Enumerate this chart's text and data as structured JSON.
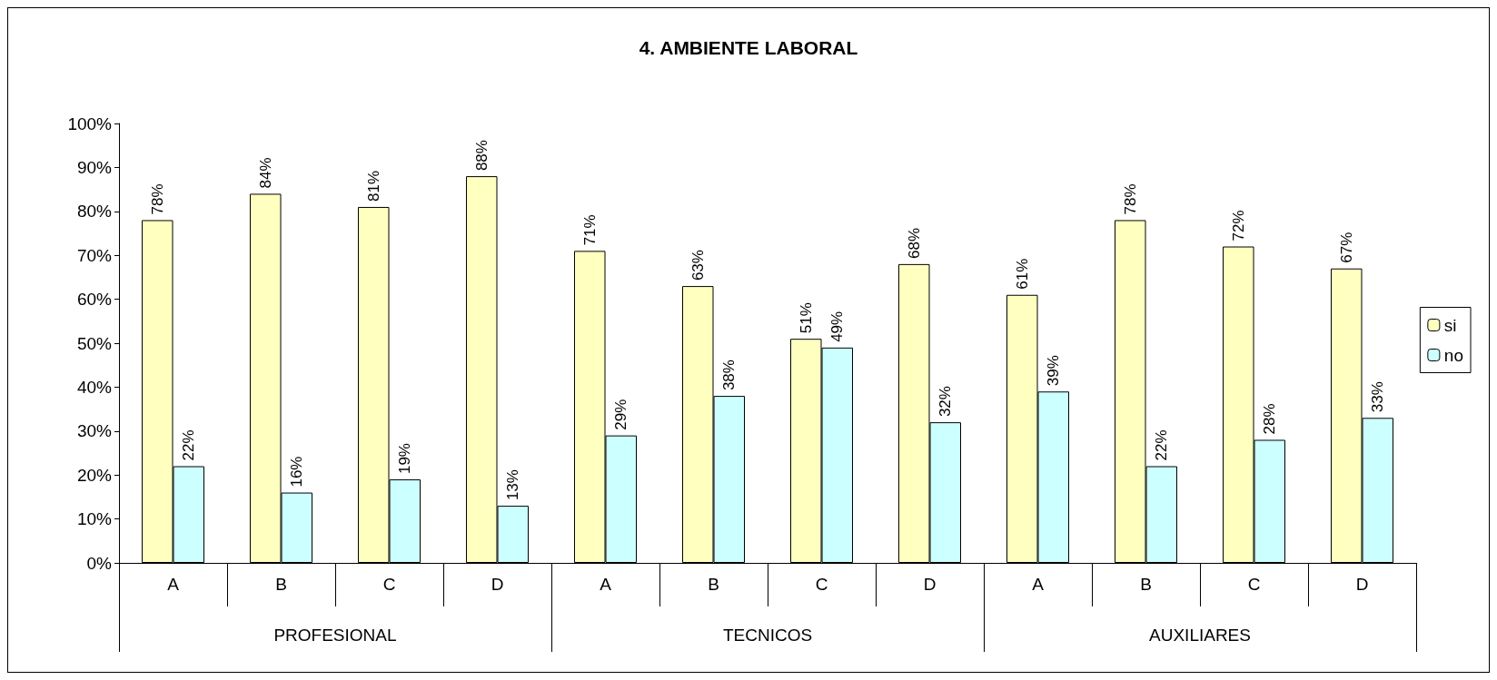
{
  "chart_data": {
    "type": "bar",
    "title": "4. AMBIENTE LABORAL",
    "categories": [
      "A",
      "B",
      "C",
      "D",
      "A",
      "B",
      "C",
      "D",
      "A",
      "B",
      "C",
      "D"
    ],
    "annotations": [
      "PROFESIONAL",
      "TECNICOS",
      "AUXILIARES"
    ],
    "series": [
      {
        "name": "si",
        "color": "#ffffc0",
        "values": [
          78,
          84,
          81,
          88,
          71,
          63,
          51,
          68,
          61,
          78,
          72,
          67
        ],
        "value_labels": [
          "78%",
          "84%",
          "81%",
          "88%",
          "71%",
          "63%",
          "51%",
          "68%",
          "61%",
          "78%",
          "72%",
          "67%"
        ]
      },
      {
        "name": "no",
        "color": "#ccffff",
        "values": [
          22,
          16,
          19,
          13,
          29,
          38,
          49,
          32,
          39,
          22,
          28,
          33
        ],
        "value_labels": [
          "22%",
          "16%",
          "19%",
          "13%",
          "29%",
          "38%",
          "49%",
          "32%",
          "39%",
          "22%",
          "28%",
          "33%"
        ]
      }
    ],
    "ylim": [
      0,
      100
    ],
    "yticks": [
      {
        "value": 0,
        "label": "0%"
      },
      {
        "value": 10,
        "label": "10%"
      },
      {
        "value": 20,
        "label": "20%"
      },
      {
        "value": 30,
        "label": "30%"
      },
      {
        "value": 40,
        "label": "40%"
      },
      {
        "value": 50,
        "label": "50%"
      },
      {
        "value": 60,
        "label": "60%"
      },
      {
        "value": 70,
        "label": "70%"
      },
      {
        "value": 80,
        "label": "80%"
      },
      {
        "value": 90,
        "label": "90%"
      },
      {
        "value": 100,
        "label": "100%"
      }
    ],
    "grid": false,
    "legend": "right"
  }
}
